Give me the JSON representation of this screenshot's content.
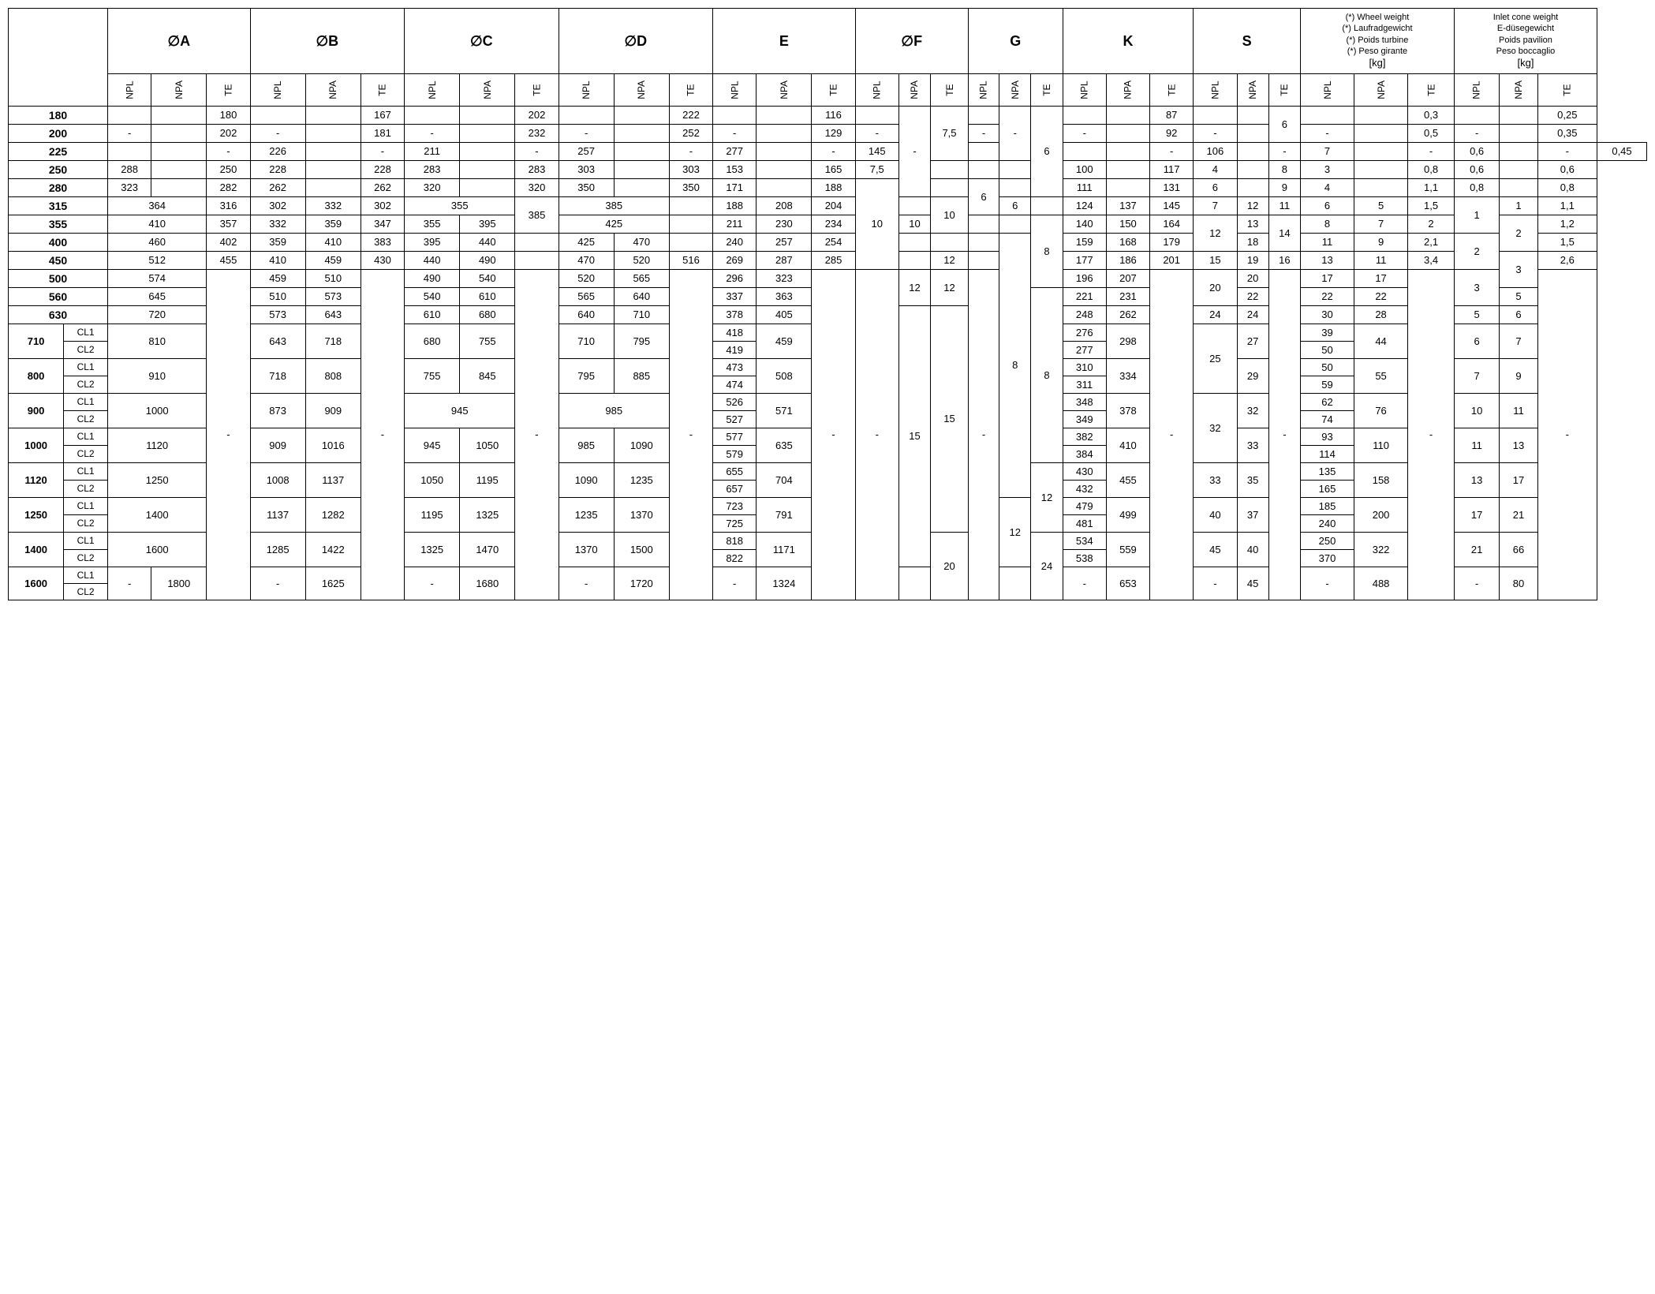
{
  "columns": {
    "main": [
      "∅A",
      "∅B",
      "∅C",
      "∅D",
      "E",
      "∅F",
      "G",
      "K",
      "S"
    ],
    "wheelWeight": {
      "lines": [
        "(*) Wheel weight",
        "(*) Laufradgewicht",
        "(*) Poids turbine",
        "(*) Peso girante"
      ],
      "unit": "[kg]"
    },
    "inletCone": {
      "lines": [
        "Inlet cone weight",
        "E-düsegewicht",
        "Poids pavilion",
        "Peso boccaglio"
      ],
      "unit": "[kg]"
    },
    "sub": [
      "NPL",
      "NPA",
      "TE"
    ]
  },
  "rows": {
    "r180": {
      "label": "180",
      "A": {
        "te": "180"
      },
      "B": {
        "te": "167"
      },
      "C": {
        "te": "202"
      },
      "D": {
        "te": "222"
      },
      "E": {
        "te": "116"
      },
      "K": {
        "te": "87"
      },
      "S": {
        "te_span2": "6"
      },
      "ww": {
        "te": "0,3"
      },
      "ic": {
        "te": "0,25"
      }
    },
    "r200": {
      "label": "200",
      "A": {
        "npl_span2": "-",
        "te": "202"
      },
      "B": {
        "npl_span2": "-",
        "te": "181"
      },
      "C": {
        "npl_span2": "-",
        "te": "232"
      },
      "D": {
        "npl_span2": "-",
        "te": "252"
      },
      "E": {
        "npl_span2": "-",
        "te": "129"
      },
      "F": {
        "npl_span2": "-"
      },
      "G": {
        "npl_span2": "-"
      },
      "K": {
        "npl_span2": "-",
        "te": "92"
      },
      "S": {
        "npl_span2": "-"
      },
      "ww": {
        "npl_span2": "-",
        "te": "0,5"
      },
      "ic": {
        "npl_span2": "-",
        "te": "0,35"
      }
    },
    "r225": {
      "label": "225",
      "A": {
        "npa_span3": "-",
        "te": "226"
      },
      "B": {
        "npa_span3": "-",
        "te": "211"
      },
      "C": {
        "npa_span3": "-",
        "te": "257"
      },
      "D": {
        "npa_span3": "-",
        "te": "277"
      },
      "E": {
        "npa_span3": "-",
        "te": "145"
      },
      "F": {
        "npa_span5": "-",
        "te_span3": "7,5"
      },
      "G": {
        "npa_span3": "-"
      },
      "K": {
        "npa_span3": "-",
        "te": "106"
      },
      "S": {
        "npa_span3": "-",
        "te": "7"
      },
      "ww": {
        "npa_span3": "-",
        "te": "0,6"
      },
      "ic": {
        "npa_span3": "-",
        "te": "0,45"
      }
    },
    "r250": {
      "label": "250",
      "A": {
        "npl": "288",
        "te": "250"
      },
      "B": {
        "npl": "228",
        "te": "228"
      },
      "C": {
        "npl": "283",
        "te": "283"
      },
      "D": {
        "npl": "303",
        "te": "303"
      },
      "E": {
        "npl": "153",
        "te": "165"
      },
      "F": {
        "npl": "7,5"
      },
      "G": {
        "te_span5": "6"
      },
      "K": {
        "npl": "100",
        "te": "117"
      },
      "S": {
        "npl": "4",
        "te": "8"
      },
      "ww": {
        "npl": "3",
        "te": "0,8"
      },
      "ic": {
        "npl": "0,6",
        "te": "0,6"
      }
    },
    "r280": {
      "label": "280",
      "A": {
        "npl": "323",
        "te": "282"
      },
      "B": {
        "npl": "262",
        "te": "262"
      },
      "C": {
        "npl": "320",
        "te": "320"
      },
      "D": {
        "npl": "350",
        "te": "350"
      },
      "E": {
        "npl": "171",
        "te": "188"
      },
      "F": {},
      "G": {
        "npa_span2": "6"
      },
      "K": {
        "npl": "111",
        "te": "131"
      },
      "S": {
        "npl": "6",
        "te": "9"
      },
      "ww": {
        "npl": "4",
        "te": "1,1"
      },
      "ic": {
        "npl": "0,8",
        "te": "0,8"
      }
    },
    "r315": {
      "label": "315",
      "A": {
        "nplnpa": "364",
        "te": "316"
      },
      "B": {
        "npl": "302",
        "npa": "332",
        "te": "302"
      },
      "C": {
        "nplnpa": "355"
      },
      "D": {
        "nplnpa": "385"
      },
      "E": {
        "npl": "188",
        "npa": "208",
        "te": "204"
      },
      "F": {
        "te_span2": "10"
      },
      "G": {
        "npl": "6"
      },
      "K": {
        "npl": "124",
        "npa": "137",
        "te": "145"
      },
      "S": {
        "npl": "7",
        "npa": "12",
        "te": "11"
      },
      "ww": {
        "npl": "6",
        "npa": "5",
        "te": "1,5"
      },
      "ic": {
        "npa": "1",
        "te": "1,1"
      }
    },
    "r355": {
      "label": "355",
      "A": {
        "nplnpa": "410",
        "te": "357"
      },
      "B": {
        "npl": "332",
        "npa": "359",
        "te": "347"
      },
      "C": {
        "npl": "355",
        "npate": "395",
        "te_span2": "385"
      },
      "D": {
        "nplnpa": "425"
      },
      "E": {
        "npl": "211",
        "npa": "230",
        "te": "234"
      },
      "F": {
        "npl_span5": "10",
        "npa": "10"
      },
      "G": {},
      "K": {
        "npl": "140",
        "npa": "150",
        "te": "164"
      },
      "S": {
        "npa": "13",
        "te_span2": "14"
      },
      "ww": {
        "npl": "8",
        "npa": "7",
        "te": "2"
      },
      "ic": {
        "npl_span2": "1",
        "te": "1,2"
      }
    },
    "r400": {
      "label": "400",
      "A": {
        "nplnpa": "460",
        "te": "402"
      },
      "B": {
        "npl": "359",
        "npa": "410",
        "te": "383"
      },
      "C": {
        "npl": "395",
        "npate": "440"
      },
      "D": {
        "npl": "425",
        "npate": "470"
      },
      "E": {
        "npl": "240",
        "npa": "257",
        "te": "254"
      },
      "F": {},
      "G": {
        "te_span4": "8"
      },
      "K": {
        "npl": "159",
        "npa": "168",
        "te": "179"
      },
      "S": {
        "npl_span2": "12",
        "npa": "18"
      },
      "ww": {
        "npl": "11",
        "npa": "9",
        "te": "2,1"
      },
      "ic": {
        "npa_span2": "2",
        "te": "1,5"
      }
    },
    "r450": {
      "label": "450",
      "A": {
        "nplnpa": "512",
        "te": "455"
      },
      "B": {
        "npl": "410",
        "npa": "459",
        "te": "430"
      },
      "C": {
        "npl": "440",
        "npate": "490"
      },
      "D": {
        "npl": "470",
        "npa": "520",
        "te": "516"
      },
      "E": {
        "npl": "269",
        "npa": "287",
        "te": "285"
      },
      "F": {
        "te": "12"
      },
      "G": {},
      "K": {
        "npl": "177",
        "npa": "186",
        "te": "201"
      },
      "S": {
        "npl": "15",
        "npa": "19",
        "te": "16"
      },
      "ww": {
        "npl": "13",
        "npa": "11",
        "te": "3,4"
      },
      "ic": {
        "npl_span2": "2",
        "te": "2,6"
      }
    },
    "r500": {
      "label": "500",
      "A": {
        "nplnpa": "574"
      },
      "B": {
        "npl": "459",
        "npa": "510"
      },
      "C": {
        "npl": "490",
        "npa": "540"
      },
      "D": {
        "npl": "520",
        "npa": "565"
      },
      "E": {
        "npl": "296",
        "npa": "323"
      },
      "F": {
        "npa_span2": "12"
      },
      "G": {},
      "K": {
        "npl": "196",
        "npa": "207"
      },
      "S": {
        "npa": "20"
      },
      "ww": {
        "npl": "17",
        "npa": "17"
      },
      "ic": {
        "npa_span2": "3"
      }
    },
    "r560": {
      "label": "560",
      "A": {
        "nplnpa": "645"
      },
      "B": {
        "npl": "510",
        "npa": "573"
      },
      "C": {
        "npl": "540",
        "npa": "610"
      },
      "D": {
        "npl": "565",
        "npa": "640"
      },
      "E": {
        "npl": "337",
        "npa": "363"
      },
      "F": {
        "te_span2": "12"
      },
      "G": {},
      "K": {
        "npl": "221",
        "npa": "231"
      },
      "S": {
        "npl_span2": "20",
        "npa": "22"
      },
      "ww": {
        "npl": "22",
        "npa": "22"
      },
      "ic": {
        "npl_span2": "3",
        "npa": "5"
      }
    },
    "r630": {
      "label": "630",
      "A": {
        "nplnpa": "720"
      },
      "B": {
        "npl": "573",
        "npa": "643"
      },
      "C": {
        "npl": "610",
        "npa": "680"
      },
      "D": {
        "npl": "640",
        "npa": "710"
      },
      "E": {
        "npl": "378",
        "npa": "405"
      },
      "F": {},
      "G": {
        "npa_span12": "8",
        "te_span6": "8"
      },
      "K": {
        "npl": "248",
        "npa": "262"
      },
      "S": {
        "npl": "24",
        "npa": "24"
      },
      "ww": {
        "npl": "30",
        "npa": "28"
      },
      "ic": {
        "npl": "5",
        "npa": "6"
      }
    },
    "r710": {
      "label": "710",
      "cl1": "CL1",
      "cl2": "CL2",
      "A": {
        "nplnpa": "810"
      },
      "B": {
        "npl": "643",
        "npa": "718"
      },
      "C": {
        "npl": "680",
        "npa": "755"
      },
      "D": {
        "npl": "710",
        "npa": "795"
      },
      "E": {
        "npl_cl1": "418",
        "npl_cl2": "419",
        "npa": "459"
      },
      "F": {},
      "G": {},
      "K": {
        "npl_cl1": "276",
        "npl_cl2": "277",
        "npa": "298"
      },
      "S": {
        "npa": "27"
      },
      "ww": {
        "npl_cl1": "39",
        "npl_cl2": "50",
        "npa": "44"
      },
      "ic": {
        "npl": "6",
        "npa": "7"
      }
    },
    "r800": {
      "label": "800",
      "cl1": "CL1",
      "cl2": "CL2",
      "A": {
        "nplnpa": "910"
      },
      "B": {
        "npl": "718",
        "npa": "808"
      },
      "C": {
        "npl": "755",
        "npa": "845"
      },
      "D": {
        "npl": "795",
        "npa": "885"
      },
      "E": {
        "npl_cl1": "473",
        "npl_cl2": "474",
        "npa": "508"
      },
      "F": {},
      "G": {},
      "K": {
        "npl_cl1": "310",
        "npl_cl2": "311",
        "npa": "334"
      },
      "S": {
        "npl_span4": "25",
        "npa": "29"
      },
      "ww": {
        "npl_cl1": "50",
        "npl_cl2": "59",
        "npa": "55"
      },
      "ic": {
        "npl": "7",
        "npa": "9"
      }
    },
    "r900": {
      "label": "900",
      "cl1": "CL1",
      "cl2": "CL2",
      "A": {
        "nplnpa": "1000"
      },
      "B": {
        "npl": "873",
        "npa": "909"
      },
      "C": {
        "nplnpa": "945"
      },
      "D": {
        "nplnpa": "985"
      },
      "E": {
        "npl_cl1": "526",
        "npl_cl2": "527",
        "npa": "571"
      },
      "F": {
        "te_span10": "15"
      },
      "G": {},
      "K": {
        "npl_cl1": "348",
        "npl_cl2": "349",
        "npa": "378"
      },
      "S": {
        "npa": "32"
      },
      "ww": {
        "npl_cl1": "62",
        "npl_cl2": "74",
        "npa": "76"
      },
      "ic": {
        "npl": "10",
        "npa": "11"
      }
    },
    "r1000": {
      "label": "1000",
      "cl1": "CL1",
      "cl2": "CL2",
      "A": {
        "nplnpa": "1120",
        "te_lg": "-"
      },
      "B": {
        "npl": "909",
        "npa": "1016",
        "te_lg": "-"
      },
      "C": {
        "npl": "945",
        "npa": "1050",
        "te_lg": "-"
      },
      "D": {
        "npl": "985",
        "npa": "1090",
        "te_lg": "-"
      },
      "E": {
        "npl_cl1": "577",
        "npl_cl2": "579",
        "npa": "635",
        "te_lg": "-"
      },
      "F": {
        "npl_lg": "-",
        "npa_span12": "15"
      },
      "G": {
        "npl_lg": "-",
        "te_lg": "-"
      },
      "K": {
        "npl_cl1": "382",
        "npl_cl2": "384",
        "npa": "410",
        "te_lg": "-"
      },
      "S": {
        "npl_span4": "32",
        "npa": "33",
        "te_lg": "-"
      },
      "ww": {
        "npl_cl1": "93",
        "npl_cl2": "114",
        "npa": "110",
        "te_lg": "-"
      },
      "ic": {
        "npl": "11",
        "npa": "13",
        "te_lg": "-"
      }
    },
    "r1120": {
      "label": "1120",
      "cl1": "CL1",
      "cl2": "CL2",
      "A": {
        "nplnpa": "1250"
      },
      "B": {
        "npl": "1008",
        "npa": "1137"
      },
      "C": {
        "npl": "1050",
        "npa": "1195"
      },
      "D": {
        "npl": "1090",
        "npa": "1235"
      },
      "E": {
        "npl_cl1": "655",
        "npl_cl2": "657",
        "npa": "704"
      },
      "F": {},
      "G": {},
      "K": {
        "npl_cl1": "430",
        "npl_cl2": "432",
        "npa": "455"
      },
      "S": {
        "npl": "33",
        "npa": "35"
      },
      "ww": {
        "npl_cl1": "135",
        "npl_cl2": "165",
        "npa": "158"
      },
      "ic": {
        "npl": "13",
        "npa": "17"
      }
    },
    "r1250": {
      "label": "1250",
      "cl1": "CL1",
      "cl2": "CL2",
      "A": {
        "nplnpa": "1400"
      },
      "B": {
        "npl": "1137",
        "npa": "1282"
      },
      "C": {
        "npl": "1195",
        "npa": "1325"
      },
      "D": {
        "npl": "1235",
        "npa": "1370"
      },
      "E": {
        "npl_cl1": "723",
        "npl_cl2": "725",
        "npa": "791"
      },
      "F": {},
      "G": {
        "te_span4": "12",
        "npa_span6": "12"
      },
      "K": {
        "npl_cl1": "479",
        "npl_cl2": "481",
        "npa": "499"
      },
      "S": {
        "npl": "40",
        "npa": "37"
      },
      "ww": {
        "npl_cl1": "185",
        "npl_cl2": "240",
        "npa": "200"
      },
      "ic": {
        "npl": "17",
        "npa": "21"
      }
    },
    "r1400": {
      "label": "1400",
      "cl1": "CL1",
      "cl2": "CL2",
      "A": {
        "nplnpa": "1600"
      },
      "B": {
        "npl": "1285",
        "npa": "1422"
      },
      "C": {
        "npl": "1325",
        "npa": "1470"
      },
      "D": {
        "npl": "1370",
        "npa": "1500"
      },
      "E": {
        "npl_cl1": "818",
        "npl_cl2": "822",
        "npa": "1171"
      },
      "F": {
        "te_span4": "20"
      },
      "G": {},
      "K": {
        "npl_cl1": "534",
        "npl_cl2": "538",
        "npa": "559"
      },
      "S": {
        "npl": "45",
        "npa": "40"
      },
      "ww": {
        "npl_cl1": "250",
        "npl_cl2": "370",
        "npa": "322"
      },
      "ic": {
        "npl": "21",
        "npa": "66"
      }
    },
    "r1600": {
      "label": "1600",
      "cl1": "CL1",
      "cl2": "CL2",
      "A": {
        "npl": "-",
        "npa": "1800"
      },
      "B": {
        "npl": "-",
        "npa": "1625"
      },
      "C": {
        "npl": "-",
        "npa": "1680"
      },
      "D": {
        "npl": "-",
        "npa": "1720"
      },
      "E": {
        "npl": "-",
        "npa": "1324"
      },
      "F": {
        "npl": "-"
      },
      "G": {
        "npl": "-",
        "te_span4": "24"
      },
      "K": {
        "npl": "-",
        "npa": "653"
      },
      "S": {
        "npl": "-",
        "npa": "45"
      },
      "ww": {
        "npl": "-",
        "npa": "488"
      },
      "ic": {
        "npl": "-",
        "npa": "80"
      }
    }
  }
}
